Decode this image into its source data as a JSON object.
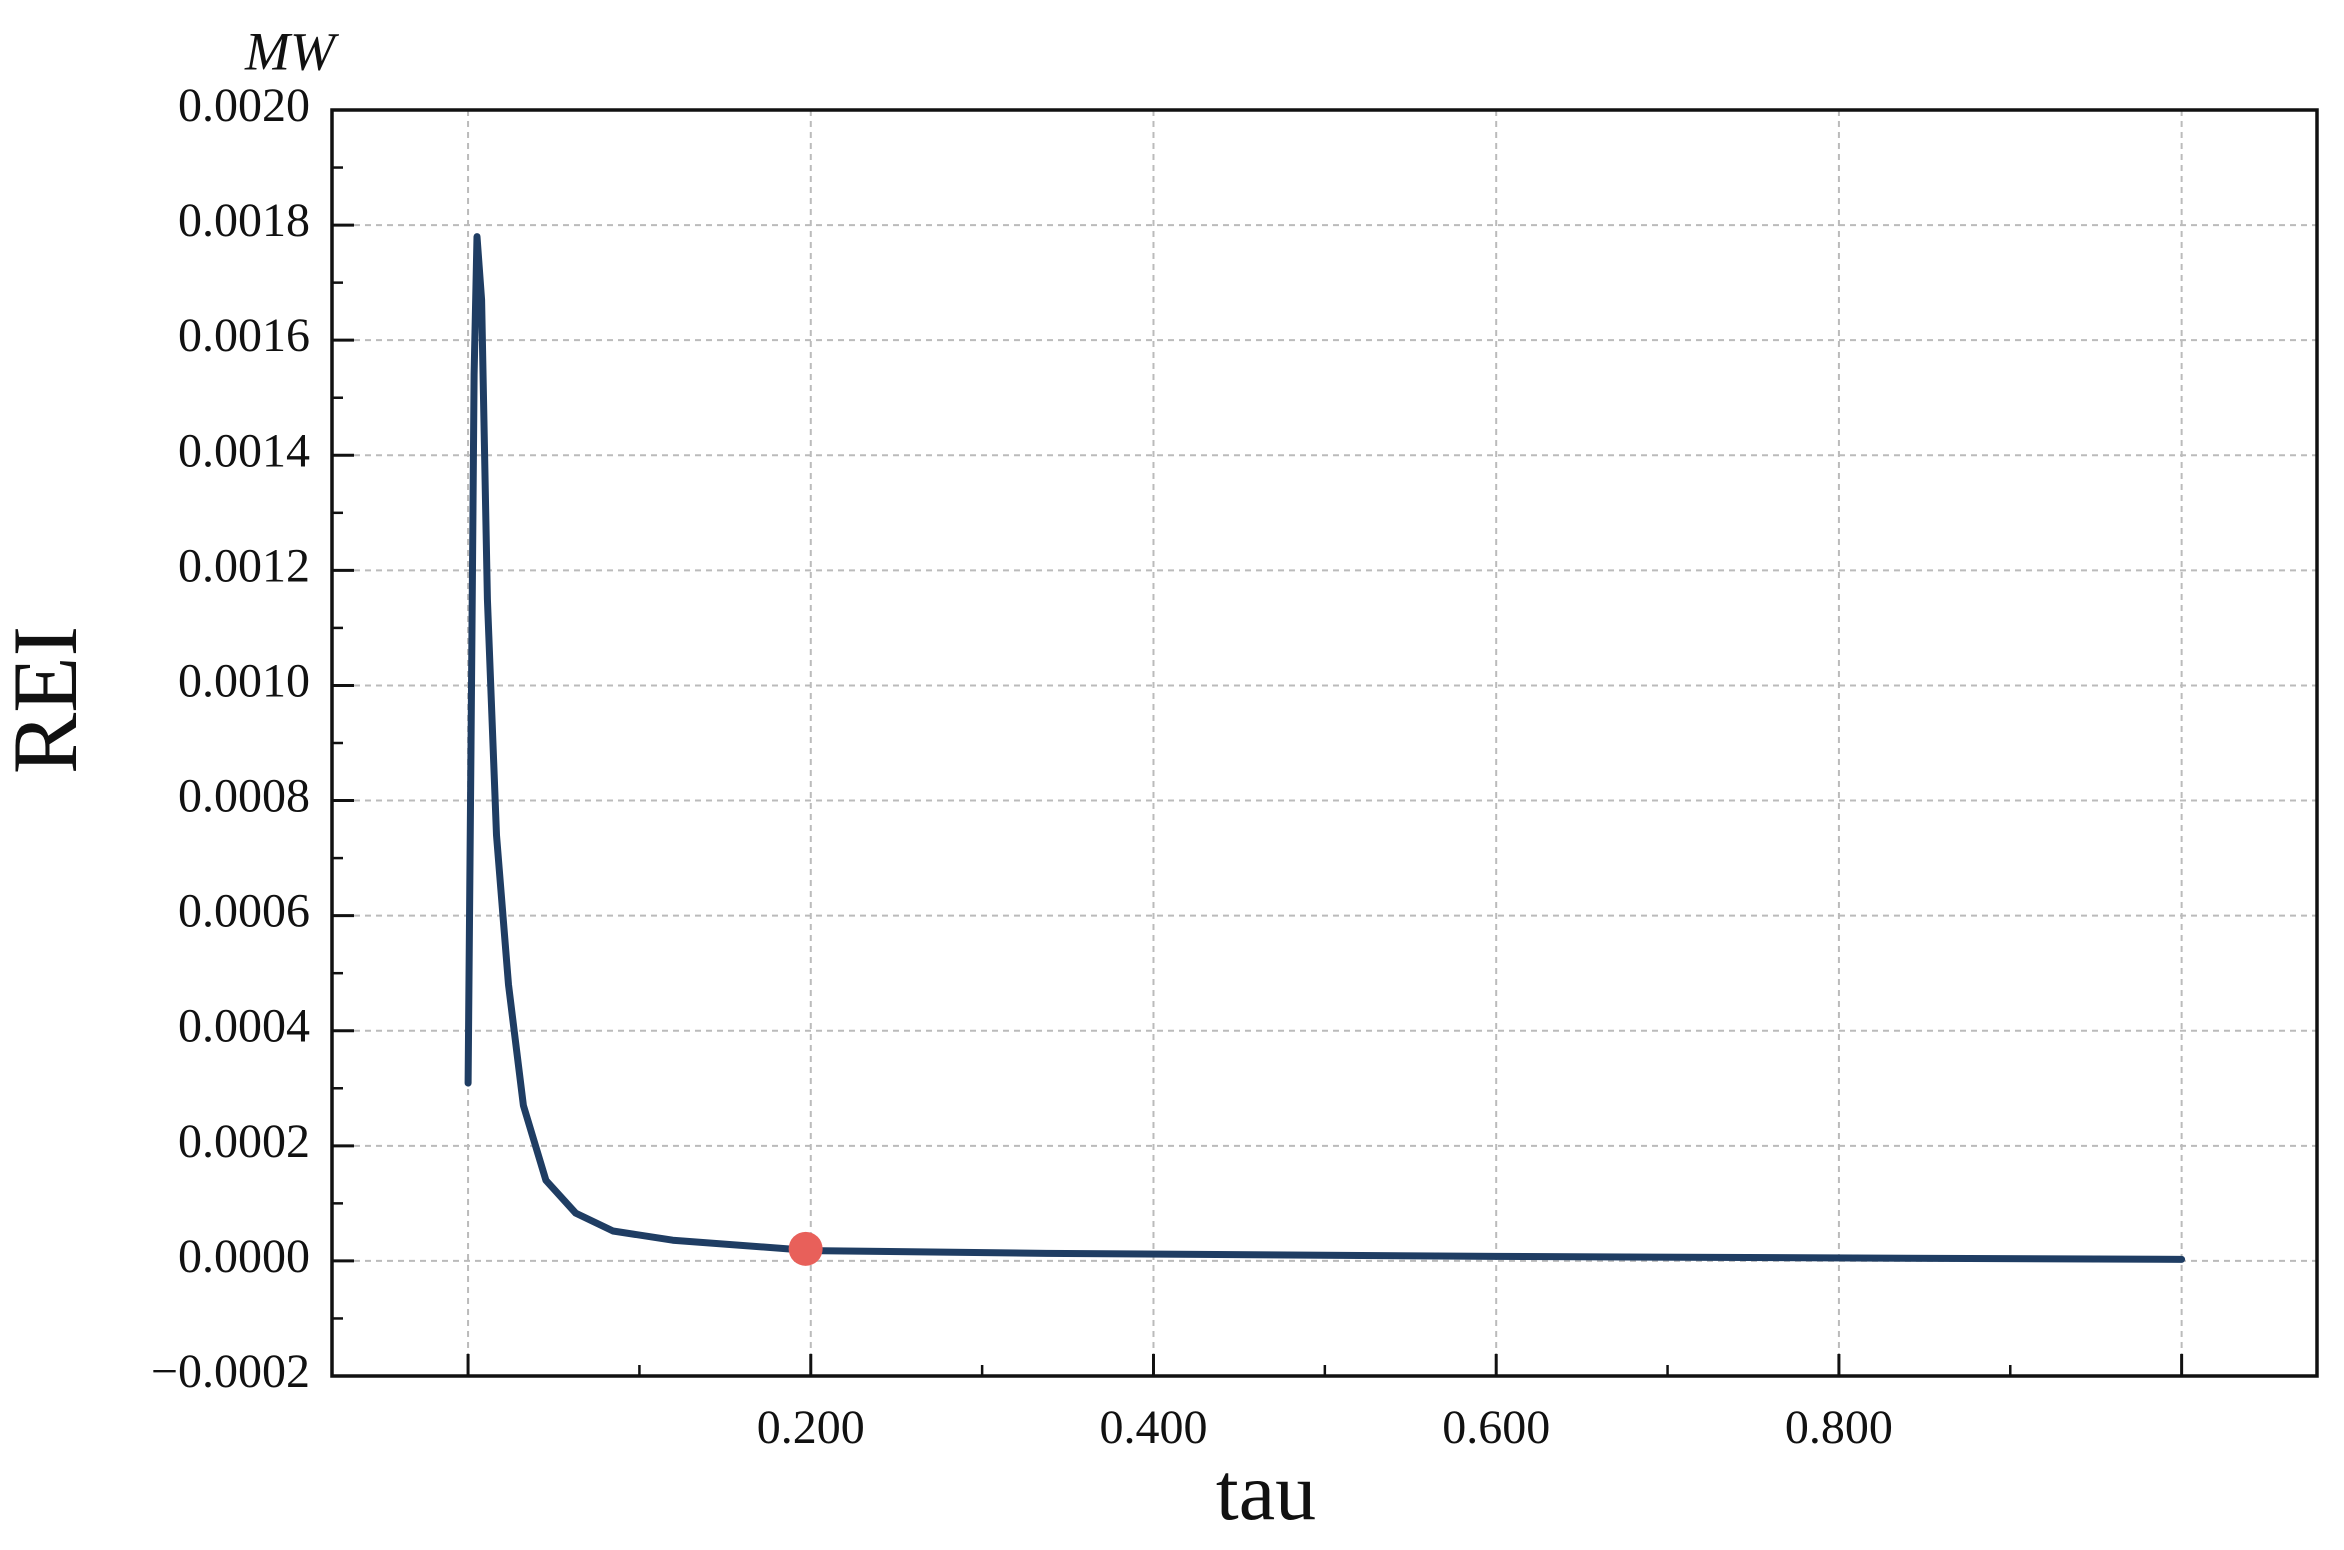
{
  "chart_data": {
    "type": "line",
    "x_label": "tau",
    "y_label": "REI",
    "unit_label": "MW",
    "x": [
      0,
      0.0017,
      0.0035,
      0.0052,
      0.0079,
      0.0113,
      0.0166,
      0.0236,
      0.0323,
      0.0454,
      0.0628,
      0.0846,
      0.1195,
      0.2,
      0.3375,
      0.599,
      1.0
    ],
    "series": [
      {
        "color": "#1f3d63",
        "values": [
          0.000309,
          0.000894,
          0.00154,
          0.00178,
          0.00167,
          0.00115,
          0.00074,
          0.00048,
          0.00027,
          0.00014,
          8.3e-05,
          5.2e-05,
          3.6e-05,
          1.8e-05,
          1.3e-05,
          7.8e-06,
          2.6e-06
        ]
      }
    ],
    "marker": {
      "x": 0.197,
      "value": 2.1e-05,
      "color": "#e8605a"
    },
    "xlim": [
      -0.0794,
      1.079
    ],
    "ylim": [
      -0.0002,
      0.002
    ],
    "xticks": [
      {
        "value": 0,
        "label": null
      },
      {
        "value": 0.2,
        "label": "0.200"
      },
      {
        "value": 0.4,
        "label": "0.400"
      },
      {
        "value": 0.6,
        "label": "0.600"
      },
      {
        "value": 0.8,
        "label": "0.800"
      },
      {
        "value": 1.0,
        "label": null
      }
    ],
    "yticks": [
      {
        "value": -0.0002,
        "label": "−0.0002"
      },
      {
        "value": 0,
        "label": "0.0000"
      },
      {
        "value": 0.0002,
        "label": "0.0002"
      },
      {
        "value": 0.0004,
        "label": "0.0004"
      },
      {
        "value": 0.0006,
        "label": "0.0006"
      },
      {
        "value": 0.0008,
        "label": "0.0008"
      },
      {
        "value": 0.001,
        "label": "0.0010"
      },
      {
        "value": 0.0012,
        "label": "0.0012"
      },
      {
        "value": 0.0014,
        "label": "0.0014"
      },
      {
        "value": 0.0016,
        "label": "0.0016"
      },
      {
        "value": 0.0018,
        "label": "0.0018"
      },
      {
        "value": 0.002,
        "label": "0.0020"
      }
    ],
    "grid": true
  }
}
